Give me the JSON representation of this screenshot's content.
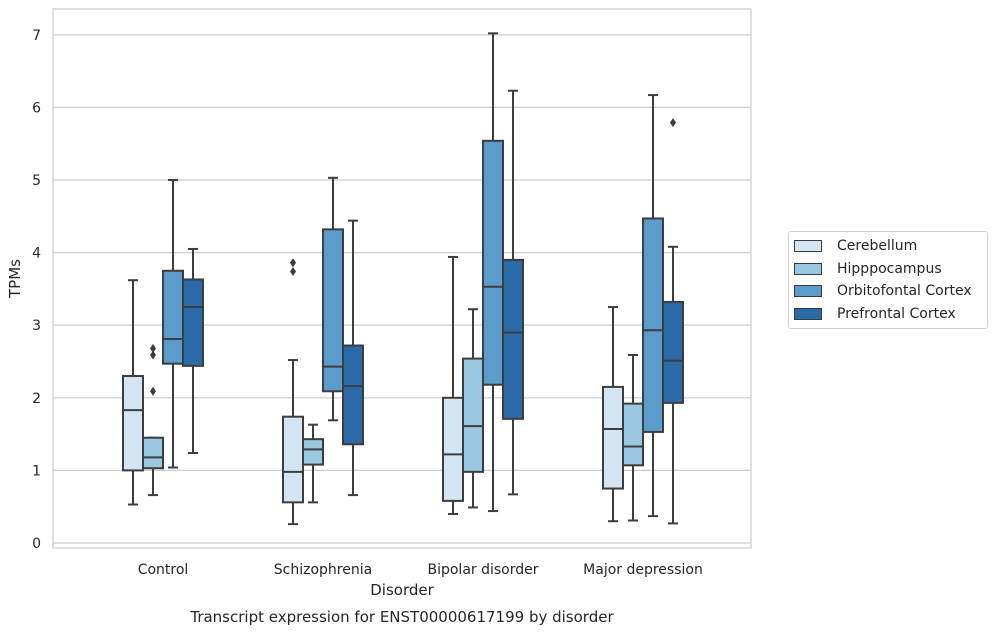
{
  "chart_data": {
    "type": "box",
    "title": "",
    "caption": "Transcript expression for ENST00000617199 by disorder",
    "xlabel": "Disorder",
    "ylabel": "TPMs",
    "ylim": [
      -0.05,
      7.35
    ],
    "yticks": [
      0,
      1,
      2,
      3,
      4,
      5,
      6,
      7
    ],
    "grid": true,
    "legend_placement": "right",
    "categories": [
      "Control",
      "Schizophrenia",
      "Bipolar disorder",
      "Major depression"
    ],
    "series": [
      {
        "name": "Cerebellum",
        "color": "#d3e4f3",
        "boxes": [
          {
            "whisker_low": 0.53,
            "q1": 1.0,
            "median": 1.83,
            "q3": 2.3,
            "whisker_high": 3.62,
            "outliers": []
          },
          {
            "whisker_low": 0.26,
            "q1": 0.56,
            "median": 0.98,
            "q3": 1.74,
            "whisker_high": 2.52,
            "outliers": [
              3.74,
              3.86
            ]
          },
          {
            "whisker_low": 0.4,
            "q1": 0.58,
            "median": 1.22,
            "q3": 2.0,
            "whisker_high": 3.94,
            "outliers": []
          },
          {
            "whisker_low": 0.3,
            "q1": 0.75,
            "median": 1.57,
            "q3": 2.15,
            "whisker_high": 3.25,
            "outliers": []
          }
        ]
      },
      {
        "name": "Hipppocampus",
        "color": "#9ac8e0",
        "boxes": [
          {
            "whisker_low": 0.66,
            "q1": 1.03,
            "median": 1.18,
            "q3": 1.45,
            "whisker_high": 1.45,
            "outliers": [
              2.09,
              2.59,
              2.68
            ]
          },
          {
            "whisker_low": 0.56,
            "q1": 1.08,
            "median": 1.29,
            "q3": 1.43,
            "whisker_high": 1.63,
            "outliers": []
          },
          {
            "whisker_low": 0.49,
            "q1": 0.98,
            "median": 1.61,
            "q3": 2.54,
            "whisker_high": 3.22,
            "outliers": []
          },
          {
            "whisker_low": 0.31,
            "q1": 1.07,
            "median": 1.33,
            "q3": 1.92,
            "whisker_high": 2.59,
            "outliers": []
          }
        ]
      },
      {
        "name": "Orbitofontal Cortex",
        "color": "#5a9ccc",
        "boxes": [
          {
            "whisker_low": 1.04,
            "q1": 2.47,
            "median": 2.81,
            "q3": 3.75,
            "whisker_high": 5.0,
            "outliers": []
          },
          {
            "whisker_low": 1.69,
            "q1": 2.09,
            "median": 2.43,
            "q3": 4.32,
            "whisker_high": 5.03,
            "outliers": []
          },
          {
            "whisker_low": 0.44,
            "q1": 2.18,
            "median": 3.53,
            "q3": 5.54,
            "whisker_high": 7.02,
            "outliers": []
          },
          {
            "whisker_low": 0.37,
            "q1": 1.53,
            "median": 2.93,
            "q3": 4.47,
            "whisker_high": 6.17,
            "outliers": []
          }
        ]
      },
      {
        "name": "Prefrontal Cortex",
        "color": "#2b6aa9",
        "boxes": [
          {
            "whisker_low": 1.24,
            "q1": 2.44,
            "median": 3.25,
            "q3": 3.63,
            "whisker_high": 4.05,
            "outliers": []
          },
          {
            "whisker_low": 0.66,
            "q1": 1.36,
            "median": 2.16,
            "q3": 2.72,
            "whisker_high": 4.44,
            "outliers": []
          },
          {
            "whisker_low": 0.67,
            "q1": 1.71,
            "median": 2.9,
            "q3": 3.9,
            "whisker_high": 6.23,
            "outliers": []
          },
          {
            "whisker_low": 0.27,
            "q1": 1.93,
            "median": 2.51,
            "q3": 3.32,
            "whisker_high": 4.08,
            "outliers": [
              5.79
            ]
          }
        ]
      }
    ]
  }
}
